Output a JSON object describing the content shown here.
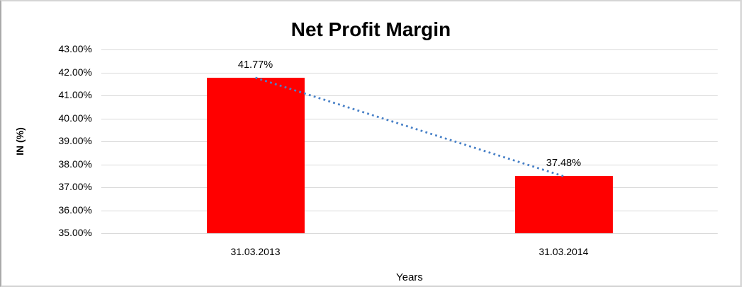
{
  "chart_data": {
    "type": "bar",
    "title": "Net Profit Margin",
    "xlabel": "Years",
    "ylabel": "IN (%)",
    "categories": [
      "31.03.2013",
      "31.03.2014"
    ],
    "values": [
      41.77,
      37.48
    ],
    "data_labels": [
      "41.77%",
      "37.48%"
    ],
    "y_ticks": [
      "43.00%",
      "42.00%",
      "41.00%",
      "40.00%",
      "39.00%",
      "38.00%",
      "37.00%",
      "36.00%",
      "35.00%"
    ],
    "ylim": [
      35,
      43
    ],
    "y_tick_step": 1,
    "grid": "horizontal",
    "legend": "none",
    "bar_color": "#ff0000",
    "trendline": {
      "type": "linear",
      "style": "dotted",
      "color": "#4a82c8"
    },
    "gridline_color": "#d9d9d9",
    "frame_border_color": "#d5d5d5",
    "text_color": "#000000"
  }
}
